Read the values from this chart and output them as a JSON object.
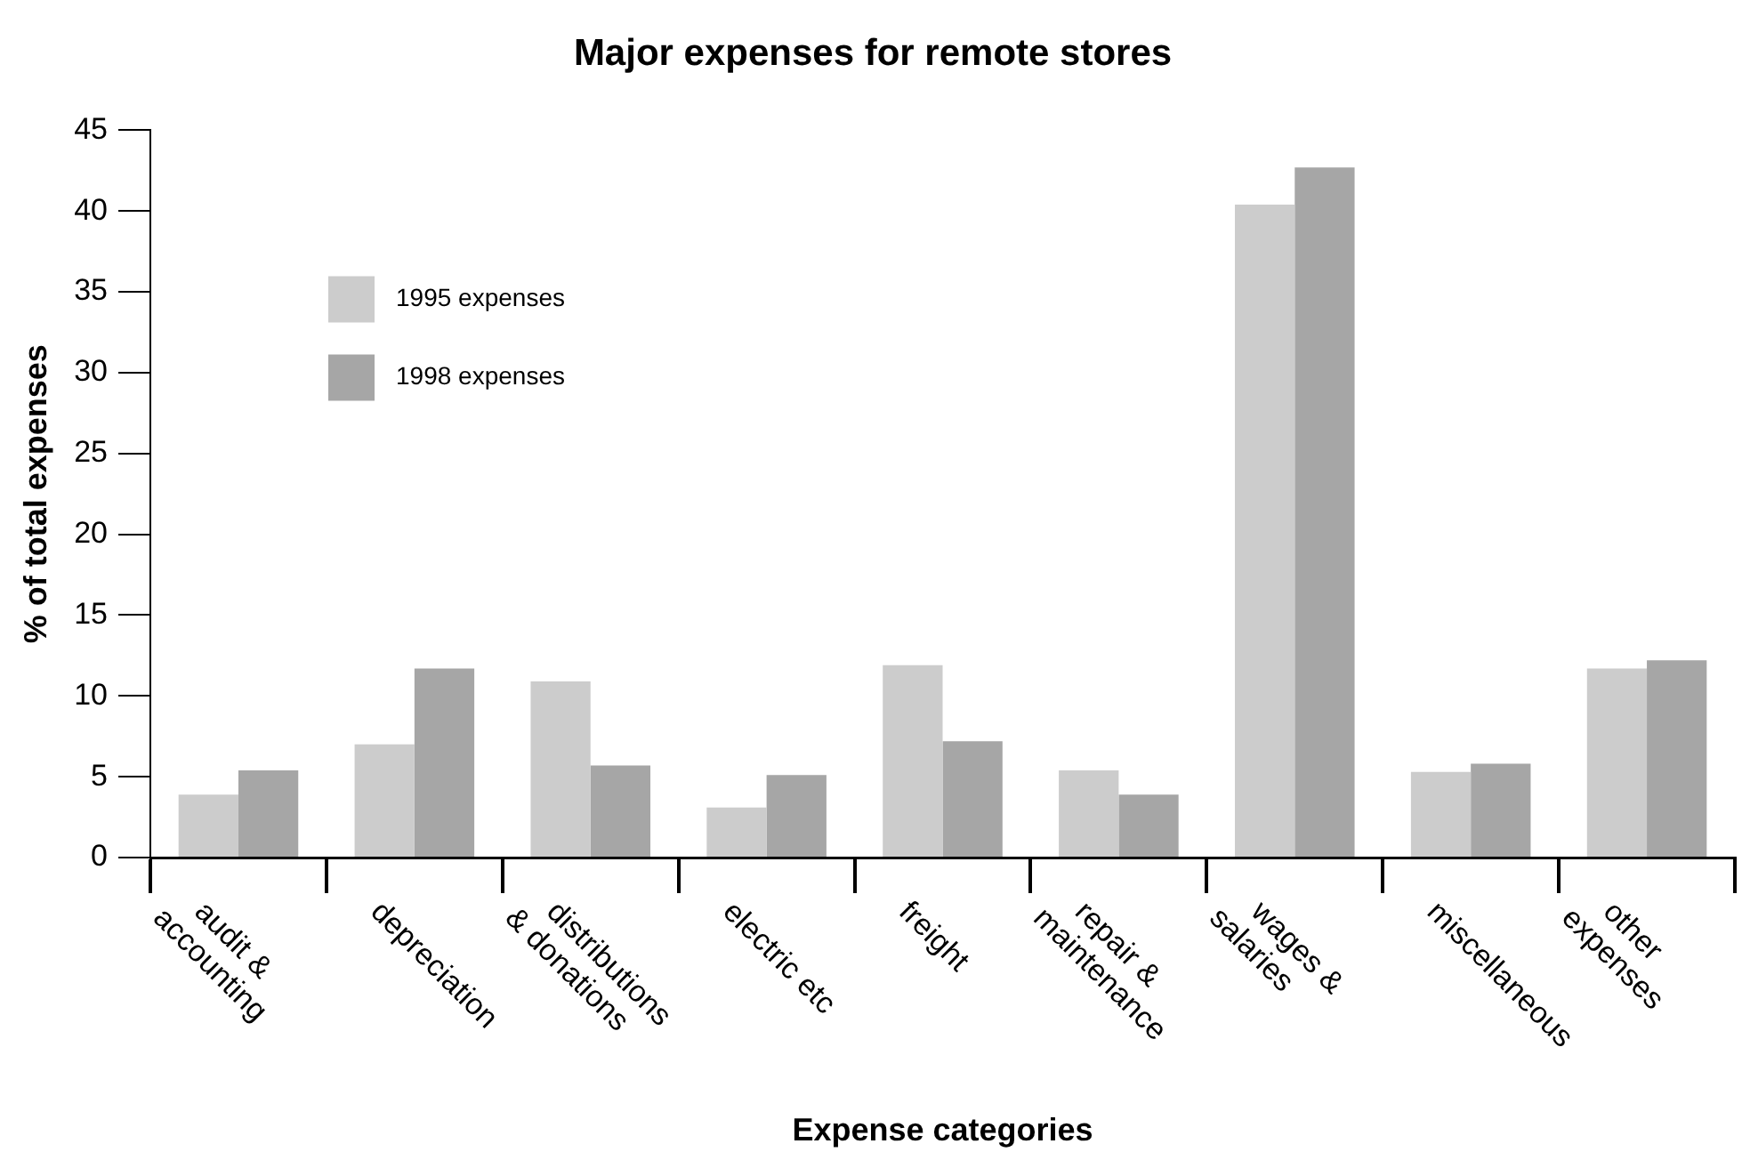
{
  "chart_data": {
    "type": "bar",
    "title": "Major expenses for remote stores",
    "xlabel": "Expense categories",
    "ylabel": "% of total expenses",
    "categories": [
      "audit & accounting",
      "depreciation",
      "distributions & donations",
      "electric etc",
      "freight",
      "repair & maintenance",
      "wages & salaries",
      "miscellaneous",
      "other expenses"
    ],
    "series": [
      {
        "name": "1995 expenses",
        "color": "#cccccc",
        "values": [
          3.9,
          7.0,
          10.9,
          3.1,
          11.9,
          5.4,
          40.4,
          5.3,
          11.7
        ]
      },
      {
        "name": "1998 expenses",
        "color": "#a6a6a6",
        "values": [
          5.4,
          11.7,
          5.7,
          5.1,
          7.2,
          3.9,
          42.7,
          5.8,
          12.2
        ]
      }
    ],
    "ylim": [
      0,
      45
    ],
    "yticks": [
      0,
      5,
      10,
      15,
      20,
      25,
      30,
      35,
      40,
      45
    ],
    "grid": false,
    "legend": "top left"
  }
}
